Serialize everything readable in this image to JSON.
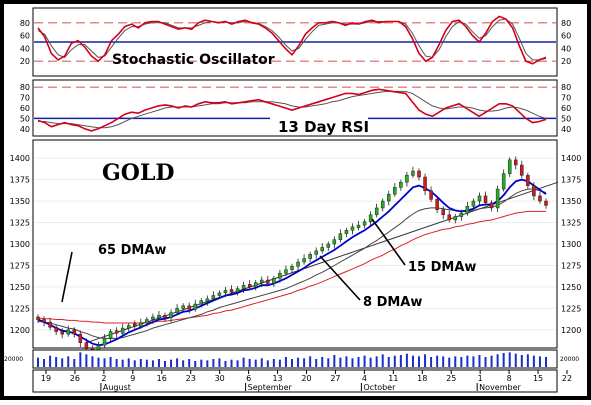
{
  "chart_data": [
    {
      "panel": "stochastic",
      "type": "line",
      "label": "Stochastic Oscillator",
      "ylim": [
        0,
        100
      ],
      "y_ticks": [
        "80",
        "60",
        "40",
        "20"
      ],
      "reference_lines": {
        "overbought": 80,
        "oversold": 20,
        "center": 50
      },
      "series": [
        {
          "role": "fast",
          "color": "#d4001a",
          "values": [
            72,
            58,
            32,
            22,
            28,
            48,
            52,
            42,
            28,
            20,
            30,
            52,
            62,
            74,
            78,
            72,
            80,
            82,
            82,
            78,
            74,
            70,
            72,
            70,
            80,
            84,
            82,
            80,
            82,
            78,
            82,
            84,
            80,
            78,
            72,
            64,
            52,
            40,
            30,
            44,
            62,
            72,
            80,
            80,
            82,
            80,
            76,
            80,
            78,
            82,
            84,
            80,
            82,
            82,
            82,
            74,
            56,
            32,
            20,
            26,
            46,
            68,
            82,
            84,
            74,
            60,
            50,
            64,
            82,
            90,
            86,
            72,
            44,
            20,
            16,
            22,
            26
          ]
        },
        {
          "role": "slow",
          "color": "#555555",
          "values": [
            68,
            62,
            44,
            30,
            26,
            38,
            46,
            46,
            36,
            26,
            28,
            42,
            56,
            68,
            74,
            74,
            78,
            80,
            80,
            80,
            76,
            72,
            72,
            72,
            76,
            80,
            82,
            81,
            81,
            80,
            80,
            82,
            81,
            79,
            74,
            68,
            58,
            46,
            36,
            40,
            54,
            66,
            76,
            78,
            80,
            80,
            78,
            78,
            78,
            80,
            82,
            82,
            82,
            82,
            82,
            78,
            64,
            44,
            28,
            26,
            38,
            58,
            74,
            82,
            78,
            66,
            56,
            60,
            74,
            84,
            86,
            78,
            56,
            32,
            22,
            22,
            24
          ]
        }
      ]
    },
    {
      "panel": "rsi",
      "type": "line",
      "label": "13 Day RSI",
      "ylim": [
        40,
        80
      ],
      "y_ticks": [
        "80",
        "70",
        "60",
        "50",
        "40"
      ],
      "reference_lines": {
        "upper": 70,
        "center": 50,
        "lower": 30
      },
      "series": [
        {
          "role": "rsi",
          "color": "#d4001a",
          "values": [
            48,
            46,
            42,
            44,
            46,
            44,
            43,
            40,
            38,
            40,
            43,
            46,
            50,
            54,
            56,
            55,
            58,
            60,
            62,
            63,
            62,
            60,
            62,
            61,
            64,
            66,
            65,
            65,
            66,
            64,
            65,
            66,
            67,
            68,
            66,
            64,
            62,
            60,
            58,
            60,
            62,
            64,
            66,
            68,
            70,
            72,
            74,
            74,
            73,
            75,
            77,
            78,
            77,
            76,
            75,
            74,
            66,
            58,
            54,
            52,
            56,
            60,
            62,
            64,
            60,
            56,
            52,
            56,
            60,
            64,
            64,
            62,
            56,
            50,
            46,
            47,
            49
          ]
        },
        {
          "role": "signal",
          "color": "#555555",
          "values": [
            47,
            47,
            46,
            45,
            45,
            45,
            44,
            43,
            42,
            41,
            41,
            42,
            44,
            47,
            50,
            52,
            54,
            56,
            58,
            60,
            61,
            61,
            61,
            61,
            62,
            63,
            64,
            64,
            65,
            65,
            65,
            65,
            66,
            66,
            66,
            66,
            65,
            64,
            62,
            61,
            61,
            62,
            63,
            64,
            66,
            67,
            69,
            71,
            72,
            73,
            74,
            75,
            76,
            76,
            76,
            76,
            74,
            70,
            66,
            62,
            60,
            59,
            60,
            61,
            61,
            60,
            58,
            57,
            57,
            58,
            60,
            61,
            60,
            58,
            55,
            52,
            50
          ]
        }
      ]
    },
    {
      "panel": "price",
      "type": "candlestick",
      "title": "GOLD",
      "ylim": [
        1180,
        1420
      ],
      "y_ticks": [
        "1400",
        "1375",
        "1350",
        "1325",
        "1300",
        "1275",
        "1250",
        "1225",
        "1200"
      ],
      "x_ticks": [
        "19",
        "26",
        "2",
        "9",
        "16",
        "23",
        "30",
        "6",
        "13",
        "20",
        "27",
        "4",
        "11",
        "18",
        "25",
        "1",
        "8",
        "15",
        "22"
      ],
      "month_labels": [
        "August",
        "September",
        "October",
        "November"
      ],
      "close": [
        1212,
        1209,
        1203,
        1198,
        1195,
        1200,
        1195,
        1185,
        1178,
        1176,
        1182,
        1190,
        1198,
        1196,
        1202,
        1205,
        1204,
        1208,
        1212,
        1215,
        1217,
        1214,
        1220,
        1225,
        1228,
        1224,
        1230,
        1234,
        1236,
        1240,
        1243,
        1246,
        1244,
        1248,
        1252,
        1250,
        1255,
        1258,
        1254,
        1260,
        1266,
        1270,
        1274,
        1279,
        1283,
        1288,
        1292,
        1296,
        1300,
        1305,
        1312,
        1316,
        1320,
        1322,
        1326,
        1334,
        1342,
        1350,
        1358,
        1366,
        1372,
        1380,
        1385,
        1378,
        1362,
        1352,
        1340,
        1334,
        1328,
        1332,
        1336,
        1344,
        1350,
        1356,
        1348,
        1342,
        1364,
        1382,
        1398,
        1392,
        1380,
        1368,
        1356,
        1350,
        1345
      ],
      "up_candle": [
        false,
        false,
        false,
        false,
        false,
        true,
        false,
        false,
        false,
        false,
        true,
        true,
        true,
        false,
        true,
        true,
        false,
        true,
        true,
        true,
        true,
        false,
        true,
        true,
        true,
        false,
        true,
        true,
        true,
        true,
        true,
        true,
        false,
        true,
        true,
        false,
        true,
        true,
        false,
        true,
        true,
        true,
        true,
        true,
        true,
        true,
        true,
        true,
        true,
        true,
        true,
        true,
        true,
        true,
        true,
        true,
        true,
        true,
        true,
        true,
        true,
        true,
        true,
        false,
        false,
        false,
        false,
        false,
        false,
        true,
        true,
        true,
        true,
        true,
        false,
        false,
        true,
        true,
        true,
        false,
        false,
        false,
        false,
        false,
        false
      ],
      "series": [
        {
          "name": "8 DMAw",
          "color": "#0000cc",
          "values": [
            1212,
            1209,
            1206,
            1202,
            1199,
            1198,
            1196,
            1192,
            1188,
            1184,
            1182,
            1183,
            1186,
            1189,
            1193,
            1197,
            1200,
            1203,
            1206,
            1209,
            1212,
            1213,
            1215,
            1218,
            1221,
            1222,
            1225,
            1228,
            1231,
            1234,
            1237,
            1240,
            1241,
            1243,
            1246,
            1247,
            1249,
            1252,
            1252,
            1254,
            1257,
            1260,
            1264,
            1268,
            1272,
            1277,
            1281,
            1285,
            1289,
            1293,
            1298,
            1303,
            1308,
            1312,
            1316,
            1321,
            1326,
            1332,
            1338,
            1345,
            1352,
            1359,
            1366,
            1368,
            1365,
            1361,
            1355,
            1348,
            1342,
            1339,
            1338,
            1339,
            1341,
            1345,
            1346,
            1346,
            1350,
            1357,
            1366,
            1373,
            1375,
            1373,
            1368,
            1363,
            1358
          ]
        },
        {
          "name": "15 DMAw",
          "color": "#444444",
          "values": [
            1210,
            1209,
            1208,
            1206,
            1204,
            1202,
            1201,
            1198,
            1196,
            1193,
            1191,
            1190,
            1190,
            1190,
            1191,
            1193,
            1195,
            1197,
            1199,
            1202,
            1204,
            1206,
            1208,
            1210,
            1212,
            1214,
            1216,
            1218,
            1221,
            1223,
            1226,
            1228,
            1230,
            1232,
            1234,
            1236,
            1238,
            1240,
            1242,
            1244,
            1246,
            1248,
            1251,
            1254,
            1257,
            1260,
            1264,
            1267,
            1271,
            1275,
            1279,
            1283,
            1287,
            1291,
            1295,
            1300,
            1304,
            1309,
            1314,
            1319,
            1324,
            1330,
            1335,
            1339,
            1341,
            1342,
            1342,
            1341,
            1340,
            1339,
            1338,
            1338,
            1339,
            1341,
            1342,
            1343,
            1345,
            1349,
            1354,
            1359,
            1362,
            1364,
            1364,
            1362,
            1360
          ]
        },
        {
          "name": "65 DMAw",
          "color": "#dd2222",
          "values": [
            1214,
            1213,
            1213,
            1212,
            1212,
            1211,
            1211,
            1210,
            1210,
            1209,
            1209,
            1208,
            1208,
            1208,
            1208,
            1208,
            1208,
            1208,
            1209,
            1209,
            1210,
            1210,
            1211,
            1212,
            1213,
            1214,
            1215,
            1216,
            1217,
            1219,
            1220,
            1222,
            1223,
            1225,
            1227,
            1229,
            1231,
            1233,
            1235,
            1237,
            1239,
            1241,
            1243,
            1246,
            1248,
            1251,
            1253,
            1256,
            1259,
            1262,
            1265,
            1268,
            1271,
            1274,
            1277,
            1281,
            1284,
            1287,
            1291,
            1294,
            1298,
            1301,
            1305,
            1308,
            1311,
            1313,
            1315,
            1317,
            1318,
            1320,
            1321,
            1323,
            1324,
            1326,
            1327,
            1328,
            1330,
            1332,
            1334,
            1336,
            1337,
            1338,
            1338,
            1338,
            1338
          ]
        }
      ],
      "trend_line": {
        "from": 1185,
        "to": 1372
      },
      "annotations": [
        "65 DMAw",
        "15 DMAw",
        "8 DMAw"
      ]
    },
    {
      "panel": "volume",
      "type": "bar",
      "y_tick": "20000",
      "values": [
        14000,
        12000,
        17000,
        15000,
        13000,
        16000,
        12000,
        22000,
        19000,
        16000,
        14000,
        13000,
        15000,
        12000,
        11000,
        13000,
        10000,
        12000,
        11000,
        10000,
        12000,
        9000,
        11000,
        13000,
        10000,
        12000,
        9000,
        11000,
        10000,
        12000,
        13000,
        9000,
        11000,
        10000,
        14000,
        12000,
        11000,
        13000,
        10000,
        12000,
        11000,
        15000,
        12000,
        14000,
        13000,
        16000,
        12000,
        15000,
        13000,
        18000,
        14000,
        16000,
        13000,
        15000,
        17000,
        14000,
        16000,
        19000,
        15000,
        17000,
        18000,
        20000,
        17000,
        16000,
        19000,
        15000,
        17000,
        16000,
        14000,
        16000,
        15000,
        17000,
        16000,
        18000,
        15000,
        17000,
        19000,
        21000,
        22000,
        20000,
        18000,
        19000,
        17000,
        16000,
        15000
      ]
    }
  ]
}
